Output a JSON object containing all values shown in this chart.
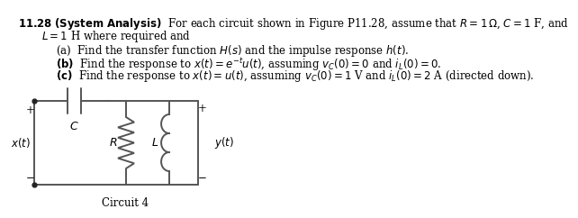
{
  "bg_color": "#ffffff",
  "text_color": "#000000",
  "circuit_color": "#555555",
  "font_size_main": 8.5,
  "font_size_small": 8.0,
  "line1_bold": "11.28 (System Analysis)",
  "line1_rest": " For each circuit shown in Figure P11.28, assume that $R = 1\\,\\Omega$, $C = 1$ F, and",
  "line2": "$L = 1$ H where required and",
  "item_a": "(a)  Find the transfer function $H(s)$ and the impulse response $h(t)$.",
  "item_b": "(b)  Find the response to $x(t) = e^{-t}u(t)$, assuming $v_C(0) = 0$ and $i_L(0) = 0$.",
  "item_c": "(c)  Find the response to $x(t) = u(t)$, assuming $v_C(0) = 1$ V and $i_L(0) = 2$ A (directed down).",
  "circuit_label": "Circuit 4"
}
